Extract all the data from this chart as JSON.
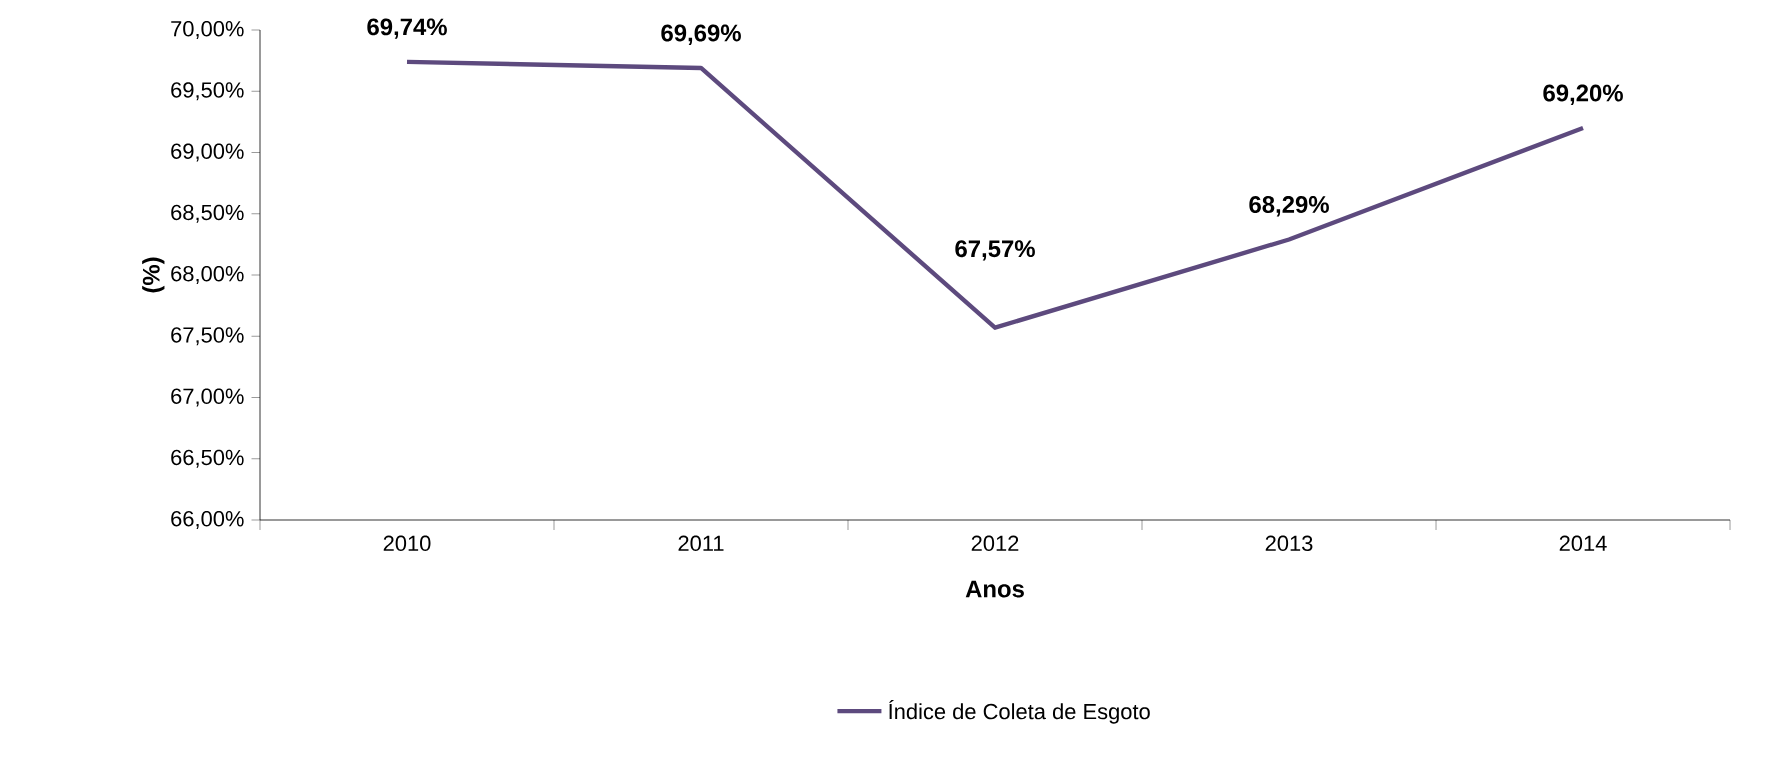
{
  "chart_data": {
    "type": "line",
    "xlabel": "Anos",
    "ylabel": "(%)",
    "categories": [
      "2010",
      "2011",
      "2012",
      "2013",
      "2014"
    ],
    "series": [
      {
        "name": "Índice de Coleta de Esgoto",
        "color": "#5d4a7e",
        "values": [
          69.74,
          69.69,
          67.57,
          68.29,
          69.2
        ],
        "value_labels": [
          "69,74%",
          "69,69%",
          "67,57%",
          "68,29%",
          "69,20%"
        ]
      }
    ],
    "ylim": [
      66,
      70
    ],
    "yticks": [
      {
        "value": 66,
        "label": "66,00%"
      },
      {
        "value": 66.5,
        "label": "66,50%"
      },
      {
        "value": 67,
        "label": "67,00%"
      },
      {
        "value": 67.5,
        "label": "67,50%"
      },
      {
        "value": 68,
        "label": "68,00%"
      },
      {
        "value": 68.5,
        "label": "68,50%"
      },
      {
        "value": 69,
        "label": "69,00%"
      },
      {
        "value": 69.5,
        "label": "69,50%"
      },
      {
        "value": 70,
        "label": "70,00%"
      }
    ],
    "legend": "bottom",
    "line_style": "solid"
  }
}
